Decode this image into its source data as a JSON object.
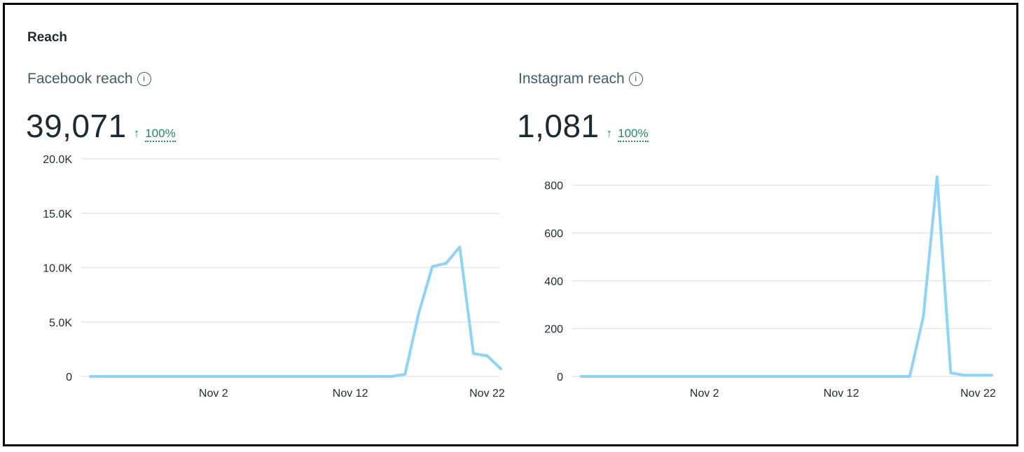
{
  "section_title": "Reach",
  "panels": [
    {
      "title": "Facebook reach",
      "value": "39,071",
      "change_arrow": "↑",
      "change": "100%",
      "info_icon": "info-icon"
    },
    {
      "title": "Instagram reach",
      "value": "1,081",
      "change_arrow": "↑",
      "change": "100%",
      "info_icon": "info-icon"
    }
  ],
  "colors": {
    "line": "#8fd3f7",
    "grid": "#e4e6eb",
    "positive": "#1f8d5c"
  },
  "chart_data": [
    {
      "type": "line",
      "title": "Facebook reach",
      "x": [
        "Oct 24",
        "Oct 25",
        "Oct 26",
        "Oct 27",
        "Oct 28",
        "Oct 29",
        "Oct 30",
        "Oct 31",
        "Nov 1",
        "Nov 2",
        "Nov 3",
        "Nov 4",
        "Nov 5",
        "Nov 6",
        "Nov 7",
        "Nov 8",
        "Nov 9",
        "Nov 10",
        "Nov 11",
        "Nov 12",
        "Nov 13",
        "Nov 14",
        "Nov 15",
        "Nov 16",
        "Nov 17",
        "Nov 18",
        "Nov 19",
        "Nov 20",
        "Nov 21",
        "Nov 22",
        "Nov 23"
      ],
      "x_tick_labels": [
        "Nov 2",
        "Nov 12",
        "Nov 22"
      ],
      "series": [
        {
          "values": [
            0,
            0,
            0,
            0,
            0,
            0,
            0,
            0,
            0,
            0,
            0,
            0,
            0,
            0,
            0,
            0,
            0,
            0,
            0,
            0,
            0,
            0,
            0,
            200,
            5800,
            10100,
            10400,
            11900,
            2100,
            1900,
            700
          ]
        }
      ],
      "y_ticks": [
        "0",
        "5.0K",
        "10.0K",
        "15.0K",
        "20.0K"
      ],
      "ylim": [
        0,
        20000
      ],
      "grid": true
    },
    {
      "type": "line",
      "title": "Instagram reach",
      "x": [
        "Oct 24",
        "Oct 25",
        "Oct 26",
        "Oct 27",
        "Oct 28",
        "Oct 29",
        "Oct 30",
        "Oct 31",
        "Nov 1",
        "Nov 2",
        "Nov 3",
        "Nov 4",
        "Nov 5",
        "Nov 6",
        "Nov 7",
        "Nov 8",
        "Nov 9",
        "Nov 10",
        "Nov 11",
        "Nov 12",
        "Nov 13",
        "Nov 14",
        "Nov 15",
        "Nov 16",
        "Nov 17",
        "Nov 18",
        "Nov 19",
        "Nov 20",
        "Nov 21",
        "Nov 22",
        "Nov 23"
      ],
      "x_tick_labels": [
        "Nov 2",
        "Nov 12",
        "Nov 22"
      ],
      "series": [
        {
          "values": [
            0,
            0,
            0,
            0,
            0,
            0,
            0,
            0,
            0,
            0,
            0,
            0,
            0,
            0,
            0,
            0,
            0,
            0,
            0,
            0,
            0,
            0,
            0,
            0,
            0,
            250,
            835,
            15,
            5,
            5,
            5
          ]
        }
      ],
      "y_ticks": [
        "0",
        "200",
        "400",
        "600",
        "800"
      ],
      "ylim": [
        0,
        910
      ],
      "grid": true
    }
  ]
}
